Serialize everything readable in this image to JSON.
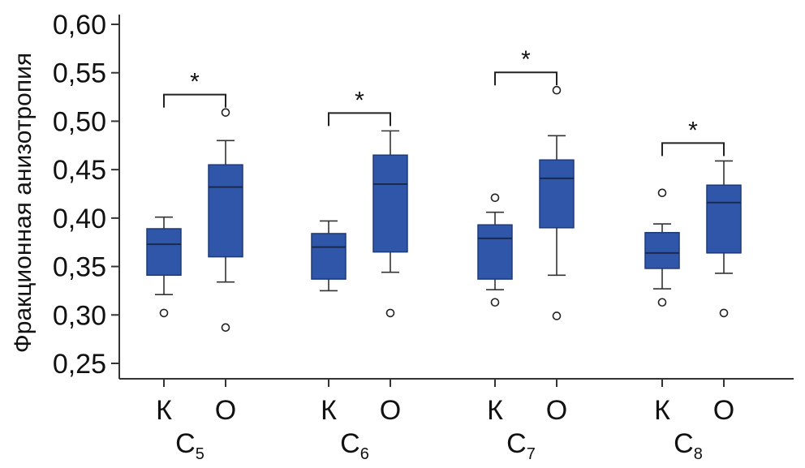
{
  "chart_data": {
    "type": "boxplot",
    "title": "",
    "ylabel": "Фракционная анизотропия",
    "xlabel": "",
    "ylim": [
      0.24,
      0.615
    ],
    "yticks": [
      "0,25",
      "0,30",
      "0,35",
      "0,40",
      "0,45",
      "0,50",
      "0,55",
      "0,60"
    ],
    "yticks_values": [
      0.25,
      0.3,
      0.35,
      0.4,
      0.45,
      0.5,
      0.55,
      0.6
    ],
    "groups": [
      {
        "segment": "C",
        "sub": "5",
        "significance": "*",
        "boxes": [
          {
            "label": "К",
            "whisker_low": 0.321,
            "q1": 0.341,
            "median": 0.373,
            "q3": 0.389,
            "whisker_high": 0.401,
            "outliers": [
              0.302
            ]
          },
          {
            "label": "О",
            "whisker_low": 0.334,
            "q1": 0.36,
            "median": 0.432,
            "q3": 0.455,
            "whisker_high": 0.48,
            "outliers": [
              0.287,
              0.509
            ]
          }
        ]
      },
      {
        "segment": "C",
        "sub": "6",
        "significance": "*",
        "boxes": [
          {
            "label": "К",
            "whisker_low": 0.325,
            "q1": 0.337,
            "median": 0.37,
            "q3": 0.384,
            "whisker_high": 0.397,
            "outliers": []
          },
          {
            "label": "О",
            "whisker_low": 0.344,
            "q1": 0.365,
            "median": 0.435,
            "q3": 0.465,
            "whisker_high": 0.49,
            "outliers": [
              0.302
            ]
          }
        ]
      },
      {
        "segment": "C",
        "sub": "7",
        "significance": "*",
        "boxes": [
          {
            "label": "К",
            "whisker_low": 0.326,
            "q1": 0.337,
            "median": 0.379,
            "q3": 0.393,
            "whisker_high": 0.406,
            "outliers": [
              0.313,
              0.421
            ]
          },
          {
            "label": "О",
            "whisker_low": 0.341,
            "q1": 0.39,
            "median": 0.441,
            "q3": 0.46,
            "whisker_high": 0.485,
            "outliers": [
              0.299,
              0.532
            ]
          }
        ]
      },
      {
        "segment": "C",
        "sub": "8",
        "significance": "*",
        "boxes": [
          {
            "label": "К",
            "whisker_low": 0.327,
            "q1": 0.348,
            "median": 0.364,
            "q3": 0.385,
            "whisker_high": 0.394,
            "outliers": [
              0.313,
              0.426
            ]
          },
          {
            "label": "О",
            "whisker_low": 0.343,
            "q1": 0.364,
            "median": 0.416,
            "q3": 0.434,
            "whisker_high": 0.459,
            "outliers": [
              0.302
            ]
          }
        ]
      }
    ],
    "colors": {
      "box_fill": "#2f56a8",
      "box_stroke": "#1d3a78",
      "axis": "#333333",
      "text": "#111111"
    }
  }
}
